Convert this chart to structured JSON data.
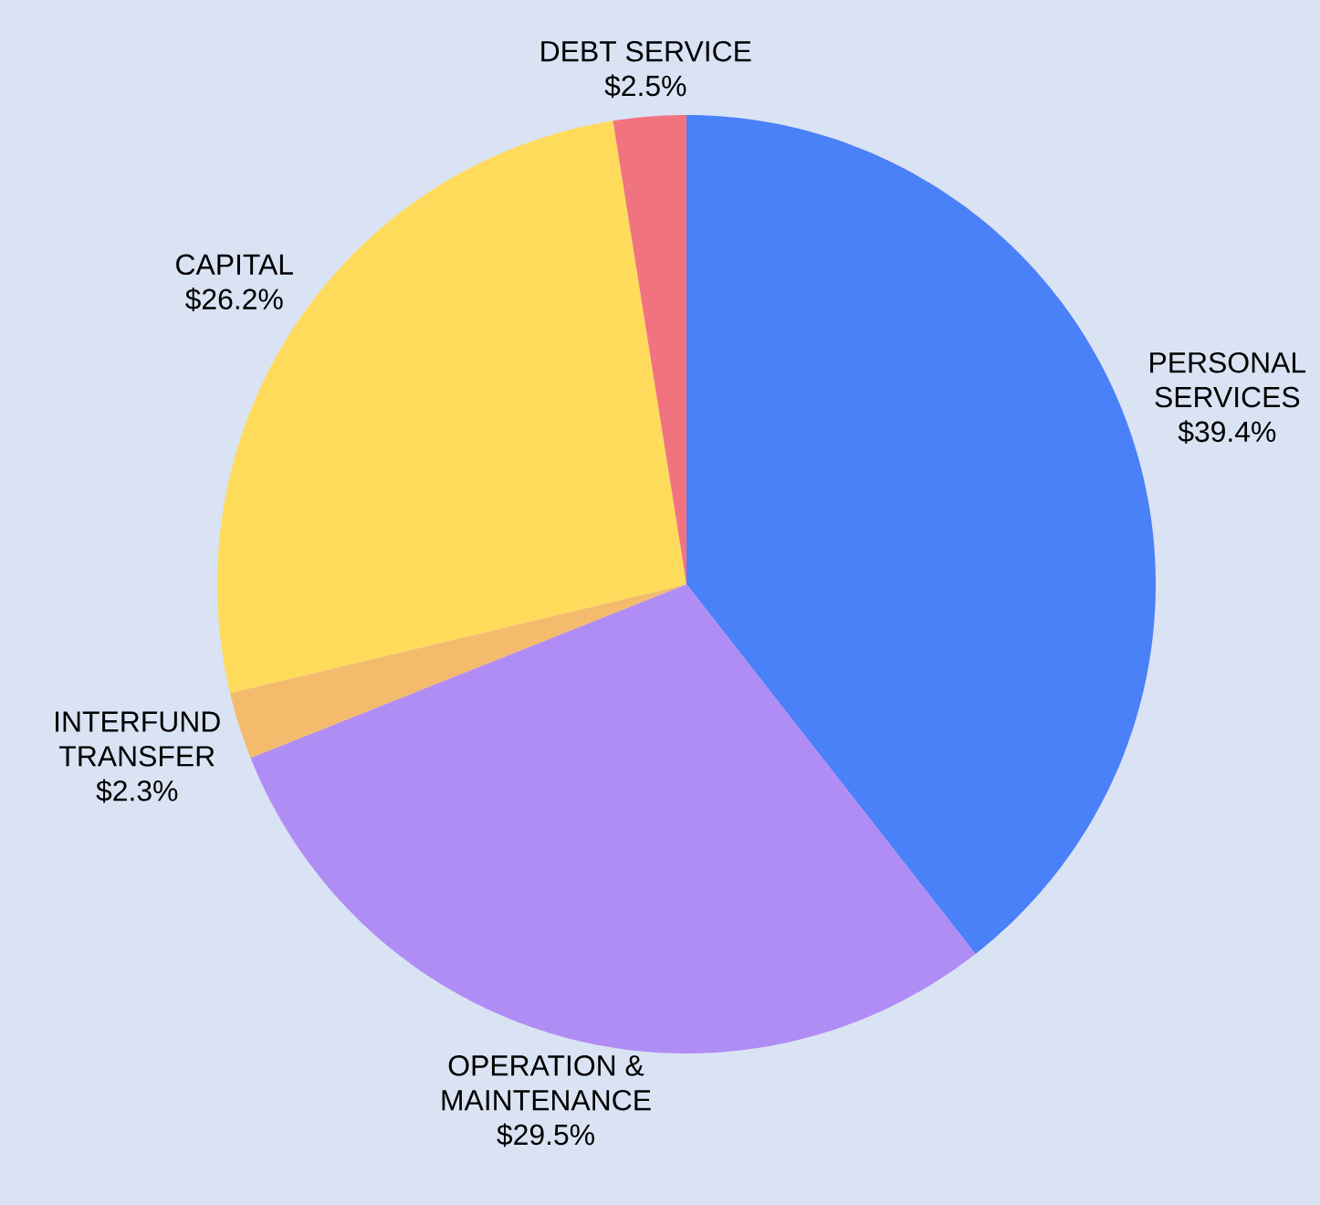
{
  "chart_data": {
    "type": "pie",
    "categories": [
      "PERSONAL SERVICES",
      "OPERATION & MAINTENANCE",
      "INTERFUND TRANSFER",
      "CAPITAL",
      "DEBT SERVICE"
    ],
    "values": [
      39.4,
      29.5,
      2.3,
      26.2,
      2.5
    ],
    "value_labels": [
      "$39.4%",
      "$29.5%",
      "$2.3%",
      "$26.2%",
      "$2.5%"
    ],
    "colors": [
      "#4a80f8",
      "#b08cf5",
      "#f5bb6c",
      "#ffdb5c",
      "#f27380"
    ]
  }
}
